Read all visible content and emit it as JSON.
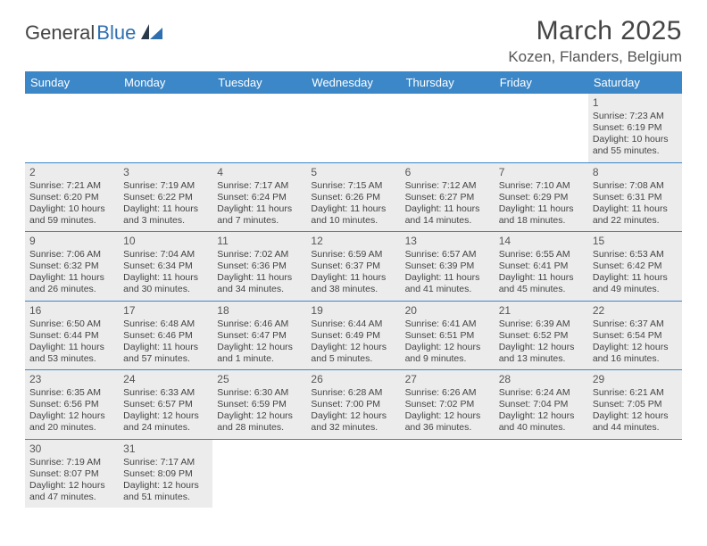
{
  "logo": {
    "text_dark": "General",
    "text_blue": "Blue"
  },
  "title": "March 2025",
  "location": "Kozen, Flanders, Belgium",
  "colors": {
    "header_bg": "#3b87c8",
    "header_text": "#ffffff",
    "cell_border": "#3b87c8",
    "shaded_bg": "#ececec",
    "text": "#444444"
  },
  "day_headers": [
    "Sunday",
    "Monday",
    "Tuesday",
    "Wednesday",
    "Thursday",
    "Friday",
    "Saturday"
  ],
  "weeks": [
    [
      null,
      null,
      null,
      null,
      null,
      null,
      {
        "n": "1",
        "sr": "Sunrise: 7:23 AM",
        "ss": "Sunset: 6:19 PM",
        "dl1": "Daylight: 10 hours",
        "dl2": "and 55 minutes."
      }
    ],
    [
      {
        "n": "2",
        "sr": "Sunrise: 7:21 AM",
        "ss": "Sunset: 6:20 PM",
        "dl1": "Daylight: 10 hours",
        "dl2": "and 59 minutes."
      },
      {
        "n": "3",
        "sr": "Sunrise: 7:19 AM",
        "ss": "Sunset: 6:22 PM",
        "dl1": "Daylight: 11 hours",
        "dl2": "and 3 minutes."
      },
      {
        "n": "4",
        "sr": "Sunrise: 7:17 AM",
        "ss": "Sunset: 6:24 PM",
        "dl1": "Daylight: 11 hours",
        "dl2": "and 7 minutes."
      },
      {
        "n": "5",
        "sr": "Sunrise: 7:15 AM",
        "ss": "Sunset: 6:26 PM",
        "dl1": "Daylight: 11 hours",
        "dl2": "and 10 minutes."
      },
      {
        "n": "6",
        "sr": "Sunrise: 7:12 AM",
        "ss": "Sunset: 6:27 PM",
        "dl1": "Daylight: 11 hours",
        "dl2": "and 14 minutes."
      },
      {
        "n": "7",
        "sr": "Sunrise: 7:10 AM",
        "ss": "Sunset: 6:29 PM",
        "dl1": "Daylight: 11 hours",
        "dl2": "and 18 minutes."
      },
      {
        "n": "8",
        "sr": "Sunrise: 7:08 AM",
        "ss": "Sunset: 6:31 PM",
        "dl1": "Daylight: 11 hours",
        "dl2": "and 22 minutes."
      }
    ],
    [
      {
        "n": "9",
        "sr": "Sunrise: 7:06 AM",
        "ss": "Sunset: 6:32 PM",
        "dl1": "Daylight: 11 hours",
        "dl2": "and 26 minutes."
      },
      {
        "n": "10",
        "sr": "Sunrise: 7:04 AM",
        "ss": "Sunset: 6:34 PM",
        "dl1": "Daylight: 11 hours",
        "dl2": "and 30 minutes."
      },
      {
        "n": "11",
        "sr": "Sunrise: 7:02 AM",
        "ss": "Sunset: 6:36 PM",
        "dl1": "Daylight: 11 hours",
        "dl2": "and 34 minutes."
      },
      {
        "n": "12",
        "sr": "Sunrise: 6:59 AM",
        "ss": "Sunset: 6:37 PM",
        "dl1": "Daylight: 11 hours",
        "dl2": "and 38 minutes."
      },
      {
        "n": "13",
        "sr": "Sunrise: 6:57 AM",
        "ss": "Sunset: 6:39 PM",
        "dl1": "Daylight: 11 hours",
        "dl2": "and 41 minutes."
      },
      {
        "n": "14",
        "sr": "Sunrise: 6:55 AM",
        "ss": "Sunset: 6:41 PM",
        "dl1": "Daylight: 11 hours",
        "dl2": "and 45 minutes."
      },
      {
        "n": "15",
        "sr": "Sunrise: 6:53 AM",
        "ss": "Sunset: 6:42 PM",
        "dl1": "Daylight: 11 hours",
        "dl2": "and 49 minutes."
      }
    ],
    [
      {
        "n": "16",
        "sr": "Sunrise: 6:50 AM",
        "ss": "Sunset: 6:44 PM",
        "dl1": "Daylight: 11 hours",
        "dl2": "and 53 minutes."
      },
      {
        "n": "17",
        "sr": "Sunrise: 6:48 AM",
        "ss": "Sunset: 6:46 PM",
        "dl1": "Daylight: 11 hours",
        "dl2": "and 57 minutes."
      },
      {
        "n": "18",
        "sr": "Sunrise: 6:46 AM",
        "ss": "Sunset: 6:47 PM",
        "dl1": "Daylight: 12 hours",
        "dl2": "and 1 minute."
      },
      {
        "n": "19",
        "sr": "Sunrise: 6:44 AM",
        "ss": "Sunset: 6:49 PM",
        "dl1": "Daylight: 12 hours",
        "dl2": "and 5 minutes."
      },
      {
        "n": "20",
        "sr": "Sunrise: 6:41 AM",
        "ss": "Sunset: 6:51 PM",
        "dl1": "Daylight: 12 hours",
        "dl2": "and 9 minutes."
      },
      {
        "n": "21",
        "sr": "Sunrise: 6:39 AM",
        "ss": "Sunset: 6:52 PM",
        "dl1": "Daylight: 12 hours",
        "dl2": "and 13 minutes."
      },
      {
        "n": "22",
        "sr": "Sunrise: 6:37 AM",
        "ss": "Sunset: 6:54 PM",
        "dl1": "Daylight: 12 hours",
        "dl2": "and 16 minutes."
      }
    ],
    [
      {
        "n": "23",
        "sr": "Sunrise: 6:35 AM",
        "ss": "Sunset: 6:56 PM",
        "dl1": "Daylight: 12 hours",
        "dl2": "and 20 minutes."
      },
      {
        "n": "24",
        "sr": "Sunrise: 6:33 AM",
        "ss": "Sunset: 6:57 PM",
        "dl1": "Daylight: 12 hours",
        "dl2": "and 24 minutes."
      },
      {
        "n": "25",
        "sr": "Sunrise: 6:30 AM",
        "ss": "Sunset: 6:59 PM",
        "dl1": "Daylight: 12 hours",
        "dl2": "and 28 minutes."
      },
      {
        "n": "26",
        "sr": "Sunrise: 6:28 AM",
        "ss": "Sunset: 7:00 PM",
        "dl1": "Daylight: 12 hours",
        "dl2": "and 32 minutes."
      },
      {
        "n": "27",
        "sr": "Sunrise: 6:26 AM",
        "ss": "Sunset: 7:02 PM",
        "dl1": "Daylight: 12 hours",
        "dl2": "and 36 minutes."
      },
      {
        "n": "28",
        "sr": "Sunrise: 6:24 AM",
        "ss": "Sunset: 7:04 PM",
        "dl1": "Daylight: 12 hours",
        "dl2": "and 40 minutes."
      },
      {
        "n": "29",
        "sr": "Sunrise: 6:21 AM",
        "ss": "Sunset: 7:05 PM",
        "dl1": "Daylight: 12 hours",
        "dl2": "and 44 minutes."
      }
    ],
    [
      {
        "n": "30",
        "sr": "Sunrise: 7:19 AM",
        "ss": "Sunset: 8:07 PM",
        "dl1": "Daylight: 12 hours",
        "dl2": "and 47 minutes."
      },
      {
        "n": "31",
        "sr": "Sunrise: 7:17 AM",
        "ss": "Sunset: 8:09 PM",
        "dl1": "Daylight: 12 hours",
        "dl2": "and 51 minutes."
      },
      null,
      null,
      null,
      null,
      null
    ]
  ]
}
